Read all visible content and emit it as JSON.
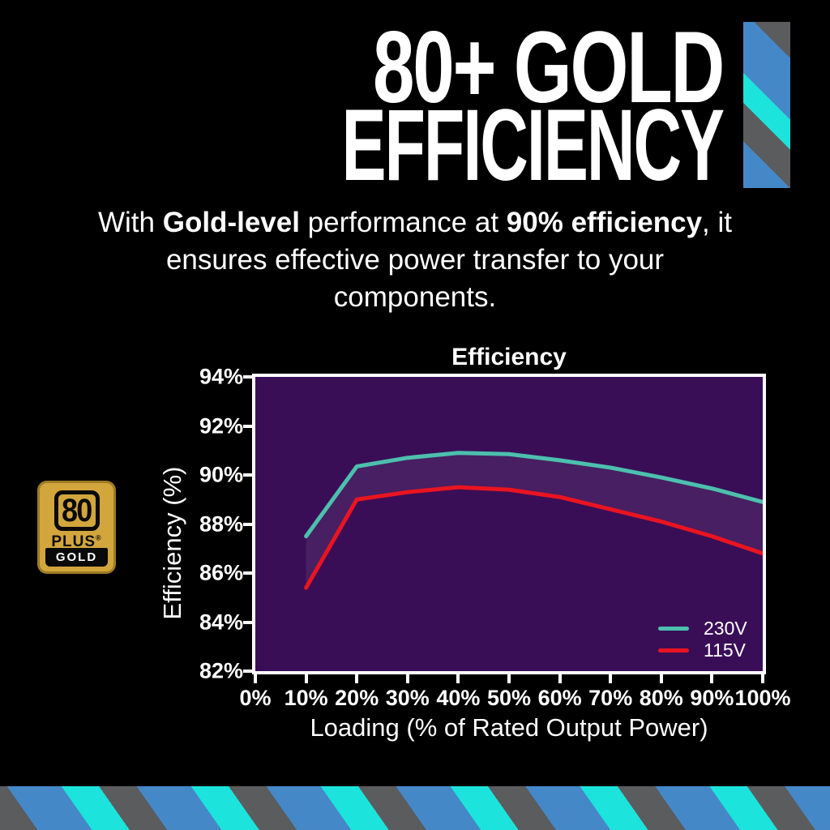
{
  "page": {
    "background": "#000000"
  },
  "heading": {
    "line1": "80+ GOLD",
    "line2": "EFFICIENCY"
  },
  "subtitle": {
    "lines": [
      {
        "segments": [
          {
            "text": "With ",
            "bold": false
          },
          {
            "text": "Gold-level",
            "bold": true
          },
          {
            "text": " performance at ",
            "bold": false
          },
          {
            "text": "90% efficiency",
            "bold": true
          },
          {
            "text": ", it",
            "bold": false
          }
        ]
      },
      {
        "segments": [
          {
            "text": "ensures effective power transfer to your",
            "bold": false
          }
        ]
      },
      {
        "segments": [
          {
            "text": "components.",
            "bold": false
          }
        ]
      }
    ]
  },
  "badge": {
    "number": "80",
    "plus": "PLUS",
    "registered": "®",
    "tier": "GOLD",
    "gold_color": "#d2a63d"
  },
  "chart_data": {
    "type": "line",
    "title": "Efficiency",
    "xlabel": "Loading (% of Rated Output Power)",
    "ylabel": "Efficiency (%)",
    "xlim": [
      0,
      100
    ],
    "ylim": [
      82,
      94
    ],
    "x_tick_labels": [
      "0%",
      "10%",
      "20%",
      "30%",
      "40%",
      "50%",
      "60%",
      "70%",
      "80%",
      "90%",
      "100%"
    ],
    "y_tick_labels": [
      "94%",
      "92%",
      "90%",
      "88%",
      "86%",
      "84%",
      "82%"
    ],
    "x_percent": [
      10,
      20,
      30,
      40,
      50,
      60,
      70,
      80,
      90,
      100
    ],
    "series": [
      {
        "name": "230V",
        "color": "#4cc0ad",
        "values": [
          87.5,
          90.35,
          90.7,
          90.9,
          90.85,
          90.6,
          90.3,
          89.9,
          89.45,
          88.9
        ]
      },
      {
        "name": "115V",
        "color": "#ea1420",
        "values": [
          85.4,
          89.0,
          89.3,
          89.5,
          89.4,
          89.1,
          88.6,
          88.1,
          87.5,
          86.8
        ]
      }
    ],
    "plot_bg": "#3a0e57",
    "axis_color": "#ffffff",
    "fill_between_series": "rgba(255,255,255,0.07)",
    "legend_position": "inside-bottom-right",
    "grid": false
  },
  "decor": {
    "stripe_blue": "#4588c8",
    "stripe_cyan": "#1ce3dc",
    "stripe_gray": "#5b5c5e"
  }
}
